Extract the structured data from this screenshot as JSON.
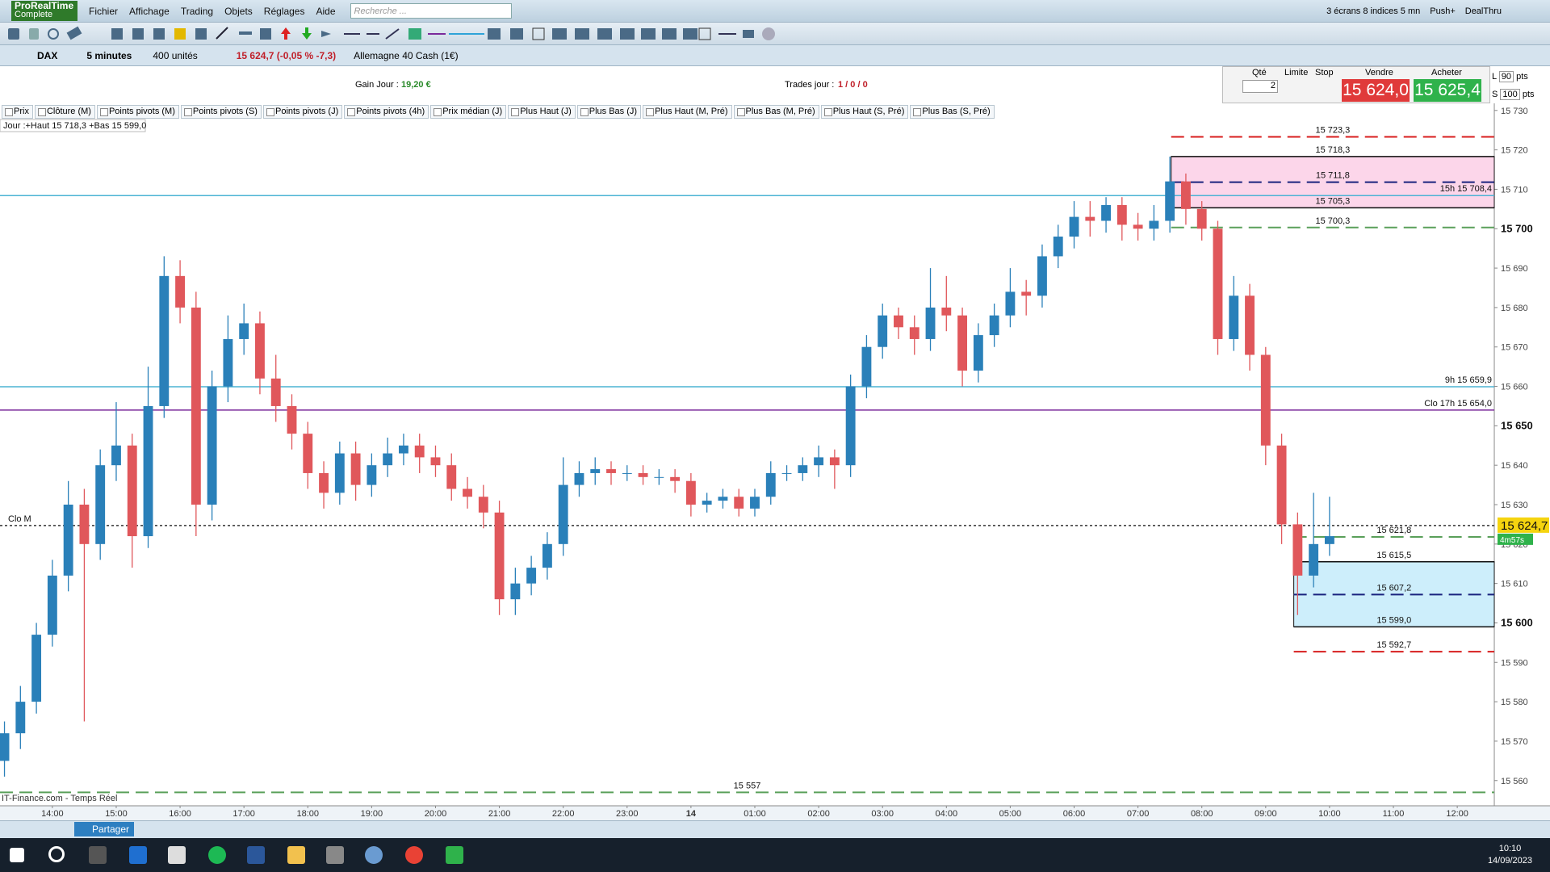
{
  "menu": {
    "logo": "ProRealTime",
    "logo_sub": "Complete",
    "items": [
      "Fichier",
      "Affichage",
      "Trading",
      "Objets",
      "Réglages",
      "Aide"
    ],
    "search_placeholder": "Recherche ...",
    "right": [
      "3 écrans 8 indices 5 mn",
      "Push+",
      "DealThru"
    ]
  },
  "instrument": {
    "symbol": "DAX",
    "period": "5 minutes",
    "units": "400 unités",
    "quote": "15 624,7 (-0,05 % -7,3)",
    "name": "Allemagne 40 Cash (1€)"
  },
  "info": {
    "gain_label": "Gain Jour :",
    "gain_value": "19,20 €",
    "trades_label": "Trades jour :",
    "trades_value": "1 / 0 / 0"
  },
  "order": {
    "qty_label": "Qté",
    "qty": "2",
    "limit": "Limite",
    "stop": "Stop",
    "sell_label": "Vendre",
    "sell_price": "15 624,0",
    "buy_label": "Acheter",
    "buy_price": "15 625,4",
    "l": "L",
    "l_pts": "90",
    "s": "S",
    "s_pts": "100",
    "pts": "pts"
  },
  "tabs": [
    "Prix",
    "Clôture (M)",
    "Points pivots (M)",
    "Points pivots (S)",
    "Points pivots (J)",
    "Points pivots (4h)",
    "Prix médian (J)",
    "Plus Haut (J)",
    "Plus Bas (J)",
    "Plus Haut (M, Pré)",
    "Plus Bas (M, Pré)",
    "Plus Haut (S, Pré)",
    "Plus Bas (S, Pré)"
  ],
  "chart_data": {
    "type": "candlestick",
    "day_info": "Jour :+Haut 15 718,3 +Bas 15 599,0",
    "source": "IT-Finance.com - Temps Réel",
    "up_color": "#2a80b9",
    "down_color": "#e0575b",
    "xlim": [
      -0.82,
      22.58
    ],
    "xticks": [
      {
        "value": 0,
        "label": "14:00"
      },
      {
        "value": 1,
        "label": "15:00"
      },
      {
        "value": 2,
        "label": "16:00"
      },
      {
        "value": 3,
        "label": "17:00"
      },
      {
        "value": 4,
        "label": "18:00"
      },
      {
        "value": 5,
        "label": "19:00"
      },
      {
        "value": 6,
        "label": "20:00"
      },
      {
        "value": 7,
        "label": "21:00"
      },
      {
        "value": 8,
        "label": "22:00"
      },
      {
        "value": 9,
        "label": "23:00"
      },
      {
        "value": 10,
        "label": "14"
      },
      {
        "value": 11,
        "label": "01:00"
      },
      {
        "value": 12,
        "label": "02:00"
      },
      {
        "value": 13,
        "label": "03:00"
      },
      {
        "value": 14,
        "label": "04:00"
      },
      {
        "value": 15,
        "label": "05:00"
      },
      {
        "value": 16,
        "label": "06:00"
      },
      {
        "value": 17,
        "label": "07:00"
      },
      {
        "value": 18,
        "label": "08:00"
      },
      {
        "value": 19,
        "label": "09:00"
      },
      {
        "value": 20,
        "label": "10:00"
      },
      {
        "value": 21,
        "label": "11:00"
      },
      {
        "value": 22,
        "label": "12:00"
      }
    ],
    "ylim": [
      15553.6,
      15731.8
    ],
    "yticks": [
      {
        "value": 15560,
        "label": "15 560"
      },
      {
        "value": 15570,
        "label": "15 570"
      },
      {
        "value": 15580,
        "label": "15 580"
      },
      {
        "value": 15590,
        "label": "15 590"
      },
      {
        "value": 15600,
        "label": "15 600"
      },
      {
        "value": 15610,
        "label": "15 610"
      },
      {
        "value": 15620,
        "label": "15 620"
      },
      {
        "value": 15630,
        "label": "15 630"
      },
      {
        "value": 15640,
        "label": "15 640"
      },
      {
        "value": 15650,
        "label": "15 650"
      },
      {
        "value": 15660,
        "label": "15 660"
      },
      {
        "value": 15670,
        "label": "15 670"
      },
      {
        "value": 15680,
        "label": "15 680"
      },
      {
        "value": 15690,
        "label": "15 690"
      },
      {
        "value": 15700,
        "label": "15 700"
      },
      {
        "value": 15710,
        "label": "15 710"
      },
      {
        "value": 15720,
        "label": "15 720"
      },
      {
        "value": 15730,
        "label": "15 730"
      }
    ],
    "x": [
      -0.75,
      -0.5,
      -0.25,
      0,
      0.25,
      0.5,
      0.75,
      1,
      1.25,
      1.5,
      1.75,
      2,
      2.25,
      2.5,
      2.75,
      3,
      3.25,
      3.5,
      3.75,
      4,
      4.25,
      4.5,
      4.75,
      5,
      5.25,
      5.5,
      5.75,
      6,
      6.25,
      6.5,
      6.75,
      7,
      7.25,
      7.5,
      7.75,
      8,
      8.25,
      8.5,
      8.75,
      9,
      9.25,
      9.5,
      9.75,
      10,
      10.25,
      10.5,
      10.75,
      11,
      11.25,
      11.5,
      11.75,
      12,
      12.25,
      12.5,
      12.75,
      13,
      13.25,
      13.5,
      13.75,
      14,
      14.25,
      14.5,
      14.75,
      15,
      15.25,
      15.5,
      15.75,
      16,
      16.25,
      16.5,
      16.75,
      17,
      17.25,
      17.5,
      17.75,
      18,
      18.25,
      18.5,
      18.75,
      19,
      19.25,
      19.5,
      19.75,
      20
    ],
    "open": [
      15565,
      15572,
      15580,
      15597,
      15612,
      15630,
      15620,
      15640,
      15645,
      15622,
      15655,
      15688,
      15680,
      15630,
      15660,
      15672,
      15676,
      15662,
      15655,
      15648,
      15638,
      15633,
      15643,
      15635,
      15640,
      15643,
      15645,
      15642,
      15640,
      15634,
      15632,
      15628,
      15606,
      15610,
      15614,
      15620,
      15635,
      15638,
      15639,
      15638,
      15638,
      15637,
      15637,
      15636,
      15630,
      15631,
      15632,
      15629,
      15632,
      15638,
      15638,
      15640,
      15642,
      15640,
      15660,
      15670,
      15678,
      15675,
      15672,
      15680,
      15678,
      15664,
      15673,
      15678,
      15684,
      15683,
      15693,
      15698,
      15703,
      15702,
      15706,
      15701,
      15700,
      15702,
      15712,
      15705,
      15700,
      15672,
      15683,
      15668,
      15645,
      15625,
      15612,
      15620
    ],
    "high": [
      15575,
      15584,
      15600,
      15616,
      15636,
      15634,
      15644,
      15656,
      15648,
      15665,
      15693,
      15692,
      15684,
      15664,
      15678,
      15681,
      15679,
      15668,
      15658,
      15651,
      15641,
      15646,
      15646,
      15643,
      15647,
      15648,
      15648,
      15645,
      15643,
      15637,
      15635,
      15631,
      15614,
      15617,
      15623,
      15642,
      15641,
      15642,
      15641,
      15640,
      15640,
      15639,
      15639,
      15638,
      15633,
      15634,
      15634,
      15634,
      15641,
      15640,
      15642,
      15645,
      15644,
      15663,
      15673,
      15681,
      15680,
      15678,
      15690,
      15688,
      15680,
      15676,
      15681,
      15690,
      15687,
      15696,
      15701,
      15707,
      15707,
      15708,
      15708,
      15704,
      15706,
      15718.3,
      15714,
      15707,
      15702,
      15688,
      15686,
      15670,
      15648,
      15628,
      15633,
      15632
    ],
    "low": [
      15561,
      15568,
      15577,
      15594,
      15608,
      15575,
      15616,
      15636,
      15614,
      15619,
      15652,
      15676,
      15622,
      15626,
      15656,
      15668,
      15658,
      15651,
      15644,
      15634,
      15629,
      15630,
      15631,
      15632,
      15637,
      15640,
      15638,
      15637,
      15631,
      15629,
      15624,
      15602,
      15602,
      15607,
      15611,
      15617,
      15632,
      15635,
      15635,
      15636,
      15635,
      15635,
      15633,
      15627,
      15628,
      15629,
      15627,
      15627,
      15630,
      15636,
      15636,
      15637,
      15634,
      15637,
      15657,
      15667,
      15672,
      15668,
      15669,
      15674,
      15660,
      15661,
      15670,
      15675,
      15678,
      15680,
      15690,
      15695,
      15698,
      15699,
      15697,
      15697,
      15697,
      15699,
      15701,
      15697,
      15668,
      15669,
      15664,
      15640,
      15620,
      15602,
      15609,
      15617
    ],
    "close": [
      15572,
      15580,
      15597,
      15612,
      15630,
      15620,
      15640,
      15645,
      15622,
      15655,
      15688,
      15680,
      15630,
      15660,
      15672,
      15676,
      15662,
      15655,
      15648,
      15638,
      15633,
      15643,
      15635,
      15640,
      15643,
      15645,
      15642,
      15640,
      15634,
      15632,
      15628,
      15606,
      15610,
      15614,
      15620,
      15635,
      15638,
      15639,
      15638,
      15638,
      15637,
      15637,
      15636,
      15630,
      15631,
      15632,
      15629,
      15632,
      15638,
      15638,
      15640,
      15642,
      15640,
      15660,
      15670,
      15678,
      15675,
      15672,
      15680,
      15678,
      15664,
      15673,
      15678,
      15684,
      15683,
      15693,
      15698,
      15703,
      15702,
      15706,
      15701,
      15700,
      15702,
      15712,
      15705,
      15700,
      15672,
      15683,
      15668,
      15645,
      15625,
      15612,
      15620,
      15622
    ],
    "zones": [
      {
        "top": 15718.3,
        "bottom": 15705.3,
        "x_start": 17.52,
        "color": "#fcd6ea",
        "border": "#111111"
      },
      {
        "top": 15615.5,
        "bottom": 15599.0,
        "x_start": 19.44,
        "color": "#cdeefb",
        "border": "#111111"
      }
    ],
    "levels": [
      {
        "label": "15 723,3",
        "value": 15723.3,
        "x_start": 17.52,
        "color": "#d81e1e",
        "style": "dashed",
        "label_anchor": "middle"
      },
      {
        "label": "15 718,3",
        "value": 15718.3,
        "x_start": 17.52,
        "color": "#111111",
        "style": "solid",
        "label_anchor": "middle"
      },
      {
        "label": "15 711,8",
        "value": 15711.8,
        "x_start": 17.52,
        "color": "#1a237e",
        "style": "dashed",
        "label_anchor": "middle"
      },
      {
        "label": "15h 15 708,4",
        "value": 15708.4,
        "color": "#4bb3d4",
        "style": "solid",
        "label_anchor": "end"
      },
      {
        "label": "15 705,3",
        "value": 15705.3,
        "x_start": 17.52,
        "color": "#111111",
        "style": "solid",
        "label_anchor": "middle"
      },
      {
        "label": "15 700,3",
        "value": 15700.3,
        "x_start": 17.52,
        "color": "#5aa05a",
        "style": "dashed",
        "label_anchor": "middle"
      },
      {
        "label": "9h 15 659,9",
        "value": 15659.9,
        "color": "#4bb3d4",
        "style": "solid",
        "label_anchor": "end"
      },
      {
        "label": "Clo 17h 15 654,0",
        "value": 15654.0,
        "color": "#7b2a9b",
        "style": "solid",
        "label_anchor": "end"
      },
      {
        "label": "Clo M",
        "value": 15624.7,
        "color": "#333333",
        "style": "dotted",
        "label_anchor": "start"
      },
      {
        "label": "15 621,8",
        "value": 15621.8,
        "x_start": 19.44,
        "color": "#5aa05a",
        "style": "dashed",
        "label_anchor": "middle"
      },
      {
        "label": "15 615,5",
        "value": 15615.5,
        "x_start": 19.44,
        "color": "#111111",
        "style": "solid",
        "label_anchor": "middle"
      },
      {
        "label": "15 607,2",
        "value": 15607.2,
        "x_start": 19.44,
        "color": "#1a237e",
        "style": "dashed",
        "label_anchor": "middle"
      },
      {
        "label": "15 599,0",
        "value": 15599.0,
        "x_start": 19.44,
        "color": "#111111",
        "style": "solid",
        "label_anchor": "middle"
      },
      {
        "label": "15 592,7",
        "value": 15592.7,
        "x_start": 19.44,
        "color": "#d81e1e",
        "style": "dashed",
        "label_anchor": "middle"
      },
      {
        "label": "15 557",
        "value": 15557,
        "color": "#5aa05a",
        "style": "dashed",
        "label_anchor": "middle"
      }
    ],
    "last_price": 15624.7,
    "last_price_label": "15 624,7",
    "countdown": "4m57s"
  },
  "bottom": {
    "share": "Partager"
  },
  "taskbar": {
    "time": "10:10",
    "date": "14/09/2023"
  }
}
